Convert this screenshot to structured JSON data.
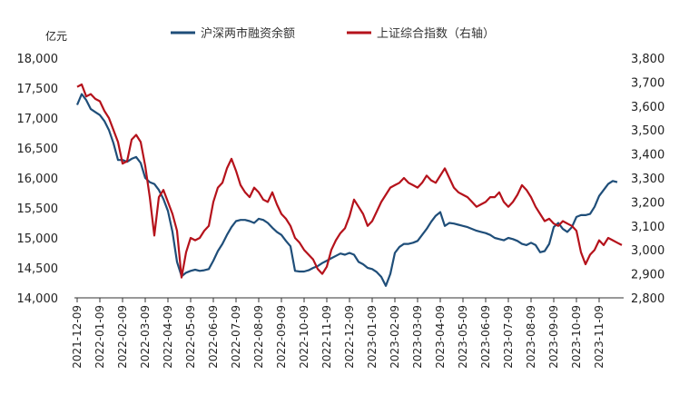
{
  "chart_data": {
    "type": "line",
    "left_axis": {
      "unit": "亿元",
      "range": [
        14000,
        18000
      ],
      "ticks": [
        "14,000",
        "14,500",
        "15,000",
        "15,500",
        "16,000",
        "16,500",
        "17,000",
        "17,500",
        "18,000"
      ],
      "tick_values": [
        14000,
        14500,
        15000,
        15500,
        16000,
        16500,
        17000,
        17500,
        18000
      ]
    },
    "right_axis": {
      "range": [
        2800,
        3800
      ],
      "ticks": [
        "2,800",
        "2,900",
        "3,000",
        "3,100",
        "3,200",
        "3,300",
        "3,400",
        "3,500",
        "3,600",
        "3,700",
        "3,800"
      ],
      "tick_values": [
        2800,
        2900,
        3000,
        3100,
        3200,
        3300,
        3400,
        3500,
        3600,
        3700,
        3800
      ]
    },
    "x_categories": [
      "2021-12-09",
      "2022-01-09",
      "2022-02-09",
      "2022-03-09",
      "2022-04-09",
      "2022-05-09",
      "2022-06-09",
      "2022-07-09",
      "2022-08-09",
      "2022-09-09",
      "2022-10-09",
      "2022-11-09",
      "2022-12-09",
      "2023-01-09",
      "2023-02-09",
      "2023-03-09",
      "2023-04-09",
      "2023-05-09",
      "2023-06-09",
      "2023-07-09",
      "2023-08-09",
      "2023-09-09",
      "2023-10-09",
      "2023-11-09"
    ],
    "grid": false,
    "legend_position": "top",
    "series": [
      {
        "name": "沪深两市融资余额",
        "axis": "left",
        "color": "#1f4e79",
        "points": [
          [
            0,
            17220
          ],
          [
            0.2,
            17400
          ],
          [
            0.4,
            17300
          ],
          [
            0.6,
            17150
          ],
          [
            0.8,
            17100
          ],
          [
            1.0,
            17050
          ],
          [
            1.2,
            16950
          ],
          [
            1.4,
            16800
          ],
          [
            1.6,
            16580
          ],
          [
            1.8,
            16300
          ],
          [
            2.0,
            16300
          ],
          [
            2.2,
            16270
          ],
          [
            2.4,
            16320
          ],
          [
            2.6,
            16350
          ],
          [
            2.8,
            16250
          ],
          [
            3.0,
            16000
          ],
          [
            3.2,
            15930
          ],
          [
            3.4,
            15900
          ],
          [
            3.6,
            15800
          ],
          [
            3.8,
            15650
          ],
          [
            4.0,
            15450
          ],
          [
            4.2,
            15100
          ],
          [
            4.4,
            14600
          ],
          [
            4.6,
            14360
          ],
          [
            4.8,
            14420
          ],
          [
            5.0,
            14450
          ],
          [
            5.2,
            14470
          ],
          [
            5.4,
            14450
          ],
          [
            5.6,
            14460
          ],
          [
            5.8,
            14480
          ],
          [
            6.0,
            14620
          ],
          [
            6.2,
            14780
          ],
          [
            6.4,
            14900
          ],
          [
            6.6,
            15050
          ],
          [
            6.8,
            15180
          ],
          [
            7.0,
            15280
          ],
          [
            7.2,
            15300
          ],
          [
            7.4,
            15300
          ],
          [
            7.6,
            15280
          ],
          [
            7.8,
            15250
          ],
          [
            8.0,
            15320
          ],
          [
            8.2,
            15300
          ],
          [
            8.4,
            15250
          ],
          [
            8.6,
            15170
          ],
          [
            8.8,
            15100
          ],
          [
            9.0,
            15050
          ],
          [
            9.2,
            14950
          ],
          [
            9.4,
            14860
          ],
          [
            9.6,
            14450
          ],
          [
            9.8,
            14440
          ],
          [
            10.0,
            14440
          ],
          [
            10.2,
            14460
          ],
          [
            10.4,
            14500
          ],
          [
            10.6,
            14530
          ],
          [
            10.8,
            14580
          ],
          [
            11.0,
            14620
          ],
          [
            11.2,
            14660
          ],
          [
            11.4,
            14700
          ],
          [
            11.6,
            14740
          ],
          [
            11.8,
            14720
          ],
          [
            12.0,
            14750
          ],
          [
            12.2,
            14720
          ],
          [
            12.4,
            14600
          ],
          [
            12.6,
            14560
          ],
          [
            12.8,
            14500
          ],
          [
            13.0,
            14480
          ],
          [
            13.2,
            14430
          ],
          [
            13.4,
            14350
          ],
          [
            13.6,
            14200
          ],
          [
            13.8,
            14400
          ],
          [
            14.0,
            14750
          ],
          [
            14.2,
            14850
          ],
          [
            14.4,
            14900
          ],
          [
            14.6,
            14900
          ],
          [
            14.8,
            14920
          ],
          [
            15.0,
            14950
          ],
          [
            15.2,
            15050
          ],
          [
            15.4,
            15150
          ],
          [
            15.6,
            15270
          ],
          [
            15.8,
            15370
          ],
          [
            16.0,
            15430
          ],
          [
            16.2,
            15200
          ],
          [
            16.4,
            15250
          ],
          [
            16.6,
            15240
          ],
          [
            16.8,
            15220
          ],
          [
            17.0,
            15200
          ],
          [
            17.2,
            15180
          ],
          [
            17.4,
            15150
          ],
          [
            17.6,
            15120
          ],
          [
            17.8,
            15100
          ],
          [
            18.0,
            15080
          ],
          [
            18.2,
            15050
          ],
          [
            18.4,
            15000
          ],
          [
            18.6,
            14980
          ],
          [
            18.8,
            14960
          ],
          [
            19.0,
            15000
          ],
          [
            19.2,
            14980
          ],
          [
            19.4,
            14950
          ],
          [
            19.6,
            14900
          ],
          [
            19.8,
            14880
          ],
          [
            20.0,
            14920
          ],
          [
            20.2,
            14880
          ],
          [
            20.4,
            14760
          ],
          [
            20.6,
            14780
          ],
          [
            20.8,
            14900
          ],
          [
            21.0,
            15180
          ],
          [
            21.2,
            15250
          ],
          [
            21.4,
            15150
          ],
          [
            21.6,
            15100
          ],
          [
            21.8,
            15180
          ],
          [
            22.0,
            15350
          ],
          [
            22.2,
            15380
          ],
          [
            22.4,
            15380
          ],
          [
            22.6,
            15400
          ],
          [
            22.8,
            15520
          ],
          [
            23.0,
            15700
          ],
          [
            23.2,
            15800
          ],
          [
            23.4,
            15900
          ],
          [
            23.6,
            15950
          ],
          [
            23.8,
            15930
          ]
        ]
      },
      {
        "name": "上证综合指数（右轴）",
        "axis": "right",
        "color": "#b5121b",
        "points": [
          [
            0,
            3680
          ],
          [
            0.2,
            3690
          ],
          [
            0.4,
            3640
          ],
          [
            0.6,
            3650
          ],
          [
            0.8,
            3630
          ],
          [
            1.0,
            3620
          ],
          [
            1.2,
            3580
          ],
          [
            1.4,
            3550
          ],
          [
            1.6,
            3500
          ],
          [
            1.8,
            3450
          ],
          [
            2.0,
            3360
          ],
          [
            2.2,
            3370
          ],
          [
            2.4,
            3460
          ],
          [
            2.6,
            3480
          ],
          [
            2.8,
            3450
          ],
          [
            3.0,
            3350
          ],
          [
            3.2,
            3220
          ],
          [
            3.4,
            3060
          ],
          [
            3.6,
            3220
          ],
          [
            3.8,
            3250
          ],
          [
            4.0,
            3200
          ],
          [
            4.2,
            3150
          ],
          [
            4.4,
            3080
          ],
          [
            4.6,
            2885
          ],
          [
            4.8,
            2990
          ],
          [
            5.0,
            3050
          ],
          [
            5.2,
            3040
          ],
          [
            5.4,
            3050
          ],
          [
            5.6,
            3080
          ],
          [
            5.8,
            3100
          ],
          [
            6.0,
            3200
          ],
          [
            6.2,
            3260
          ],
          [
            6.4,
            3280
          ],
          [
            6.6,
            3340
          ],
          [
            6.8,
            3380
          ],
          [
            7.0,
            3330
          ],
          [
            7.2,
            3270
          ],
          [
            7.4,
            3240
          ],
          [
            7.6,
            3220
          ],
          [
            7.8,
            3260
          ],
          [
            8.0,
            3240
          ],
          [
            8.2,
            3210
          ],
          [
            8.4,
            3200
          ],
          [
            8.6,
            3240
          ],
          [
            8.8,
            3190
          ],
          [
            9.0,
            3150
          ],
          [
            9.2,
            3130
          ],
          [
            9.4,
            3100
          ],
          [
            9.6,
            3050
          ],
          [
            9.8,
            3030
          ],
          [
            10.0,
            3000
          ],
          [
            10.2,
            2980
          ],
          [
            10.4,
            2960
          ],
          [
            10.6,
            2920
          ],
          [
            10.8,
            2900
          ],
          [
            11.0,
            2930
          ],
          [
            11.2,
            3000
          ],
          [
            11.4,
            3040
          ],
          [
            11.6,
            3070
          ],
          [
            11.8,
            3090
          ],
          [
            12.0,
            3140
          ],
          [
            12.2,
            3210
          ],
          [
            12.4,
            3180
          ],
          [
            12.6,
            3150
          ],
          [
            12.8,
            3100
          ],
          [
            13.0,
            3120
          ],
          [
            13.2,
            3160
          ],
          [
            13.4,
            3200
          ],
          [
            13.6,
            3230
          ],
          [
            13.8,
            3260
          ],
          [
            14.0,
            3270
          ],
          [
            14.2,
            3280
          ],
          [
            14.4,
            3300
          ],
          [
            14.6,
            3280
          ],
          [
            14.8,
            3270
          ],
          [
            15.0,
            3260
          ],
          [
            15.2,
            3280
          ],
          [
            15.4,
            3310
          ],
          [
            15.6,
            3290
          ],
          [
            15.8,
            3280
          ],
          [
            16.0,
            3310
          ],
          [
            16.2,
            3340
          ],
          [
            16.4,
            3300
          ],
          [
            16.6,
            3260
          ],
          [
            16.8,
            3240
          ],
          [
            17.0,
            3230
          ],
          [
            17.2,
            3220
          ],
          [
            17.4,
            3200
          ],
          [
            17.6,
            3180
          ],
          [
            17.8,
            3190
          ],
          [
            18.0,
            3200
          ],
          [
            18.2,
            3220
          ],
          [
            18.4,
            3220
          ],
          [
            18.6,
            3240
          ],
          [
            18.8,
            3200
          ],
          [
            19.0,
            3180
          ],
          [
            19.2,
            3200
          ],
          [
            19.4,
            3230
          ],
          [
            19.6,
            3270
          ],
          [
            19.8,
            3250
          ],
          [
            20.0,
            3220
          ],
          [
            20.2,
            3180
          ],
          [
            20.4,
            3150
          ],
          [
            20.6,
            3120
          ],
          [
            20.8,
            3130
          ],
          [
            21.0,
            3110
          ],
          [
            21.2,
            3100
          ],
          [
            21.4,
            3120
          ],
          [
            21.6,
            3110
          ],
          [
            21.8,
            3100
          ],
          [
            22.0,
            3080
          ],
          [
            22.2,
            2990
          ],
          [
            22.4,
            2940
          ],
          [
            22.6,
            2980
          ],
          [
            22.8,
            3000
          ],
          [
            23.0,
            3040
          ],
          [
            23.2,
            3020
          ],
          [
            23.4,
            3050
          ],
          [
            23.6,
            3040
          ],
          [
            23.8,
            3030
          ],
          [
            24.0,
            3020
          ]
        ]
      }
    ]
  }
}
